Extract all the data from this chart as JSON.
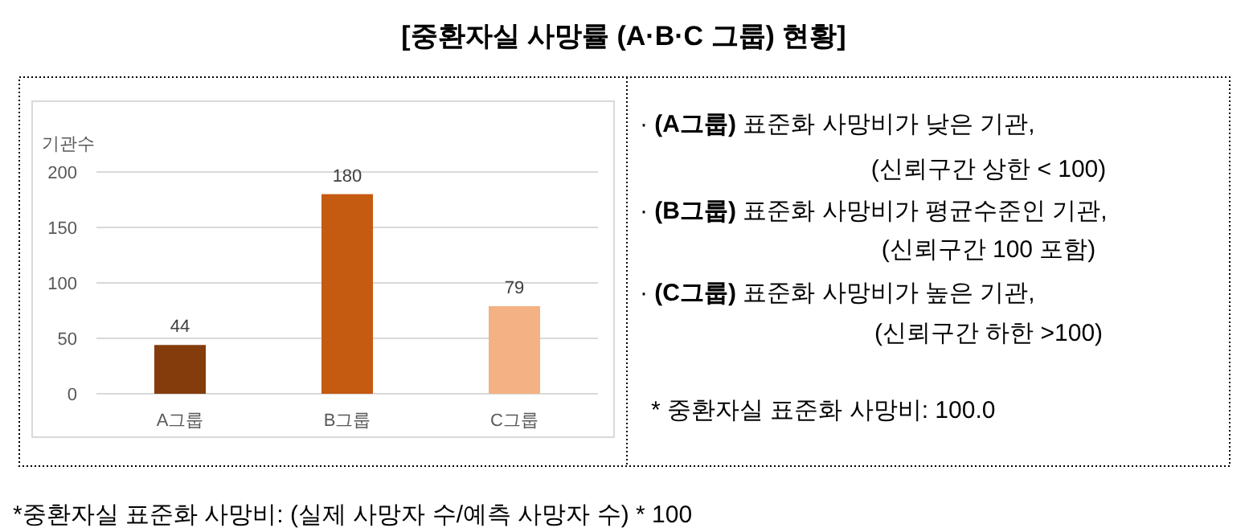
{
  "chart_data": {
    "type": "bar",
    "title": "[중환자실 사망률 (A·B·C 그룹) 현황]",
    "ylabel": "기관수",
    "categories": [
      "A그룹",
      "B그룹",
      "C그룹"
    ],
    "values": [
      44,
      180,
      79
    ],
    "colors": [
      "#843c0c",
      "#c55a11",
      "#f4b183"
    ],
    "ylim": [
      0,
      200
    ],
    "yticks": [
      0,
      50,
      100,
      150,
      200
    ],
    "grid": "y",
    "data_labels": true,
    "annotations": [
      "· **(A그룹)** 표준화 사망비가 낮은 기관,",
      "(신뢰구간 상한 < 100)",
      "· **(B그룹)** 표준화 사망비가 평균수준인 기관,",
      "(신뢰구간 100 포함)",
      "· **(C그룹)** 표준화 사망비가 높은 기관,",
      "(신뢰구간 하한 >100)",
      "* 중환자실 표준화 사망비: 100.0",
      "*중환자실 표준화 사망비: (실제 사망자 수/예측 사망자 수) * 100"
    ]
  }
}
